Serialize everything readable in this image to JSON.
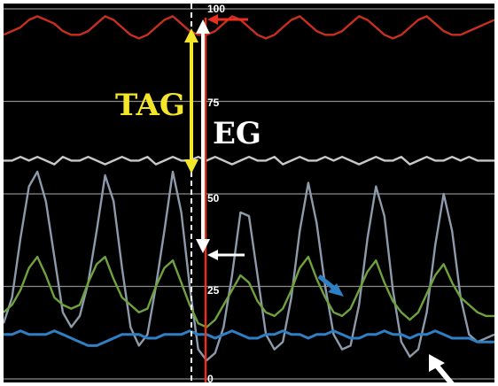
{
  "chart_data": {
    "type": "line",
    "ylim": [
      0,
      100
    ],
    "y_ticks": [
      "0",
      "25",
      "50",
      "75",
      "100"
    ],
    "grid": true,
    "colors": {
      "red": "#c8301e",
      "gray": "#c8c8c8",
      "slate": "#8c9aab",
      "green": "#6fa23e",
      "blue": "#2f7fc4",
      "yellow": "#f2e52a",
      "white": "#ffffff",
      "marker_red": "#e8301e"
    },
    "annotations": {
      "tag": "TAG",
      "eg": "EG"
    },
    "series": [
      {
        "color_key": "red",
        "values": [
          93,
          94,
          95,
          97,
          98,
          97,
          96,
          94,
          93,
          93,
          94,
          96,
          98,
          97,
          95,
          93,
          92,
          93,
          95,
          97,
          98,
          96,
          94,
          93,
          93,
          94,
          96,
          98,
          97,
          95,
          93,
          92,
          93,
          95,
          97,
          98,
          96,
          94,
          93,
          93,
          94,
          96,
          98,
          97,
          95,
          93,
          92,
          93,
          95,
          97,
          98,
          96,
          94,
          93,
          93,
          94,
          95,
          96,
          97
        ]
      },
      {
        "color_key": "gray",
        "values": [
          59,
          59,
          60,
          59,
          60,
          59,
          58,
          60,
          59,
          59,
          60,
          59,
          58,
          59,
          60,
          59,
          59,
          60,
          58,
          59,
          60,
          59,
          59,
          60,
          59,
          60,
          59,
          58,
          59,
          60,
          59,
          59,
          60,
          58,
          59,
          60,
          59,
          59,
          60,
          59,
          60,
          59,
          58,
          59,
          60,
          59,
          59,
          60,
          58,
          59,
          60,
          59,
          59,
          60,
          59,
          60,
          59,
          59,
          59
        ]
      },
      {
        "color_key": "slate",
        "values": [
          15,
          22,
          38,
          52,
          56,
          48,
          33,
          18,
          14,
          17,
          26,
          40,
          55,
          48,
          30,
          14,
          9,
          12,
          25,
          40,
          56,
          45,
          25,
          8,
          5,
          7,
          14,
          28,
          45,
          44,
          28,
          12,
          8,
          10,
          22,
          40,
          53,
          42,
          25,
          12,
          8,
          9,
          20,
          38,
          52,
          44,
          24,
          10,
          6,
          8,
          18,
          36,
          50,
          40,
          22,
          12,
          10,
          11,
          12
        ]
      },
      {
        "color_key": "green",
        "values": [
          18,
          20,
          24,
          30,
          33,
          28,
          22,
          20,
          19,
          20,
          26,
          31,
          33,
          27,
          22,
          20,
          18,
          19,
          25,
          30,
          32,
          26,
          20,
          15,
          14,
          16,
          20,
          24,
          28,
          26,
          21,
          18,
          17,
          19,
          24,
          30,
          33,
          27,
          22,
          18,
          17,
          19,
          24,
          29,
          32,
          26,
          21,
          18,
          16,
          18,
          23,
          28,
          31,
          26,
          22,
          20,
          18,
          17,
          17
        ]
      },
      {
        "color_key": "blue",
        "values": [
          12,
          12,
          13,
          12,
          12,
          12,
          13,
          12,
          11,
          10,
          9,
          9,
          10,
          11,
          12,
          12,
          12,
          11,
          11,
          12,
          12,
          12,
          13,
          12,
          12,
          11,
          12,
          13,
          12,
          11,
          11,
          12,
          12,
          13,
          12,
          12,
          11,
          12,
          12,
          13,
          12,
          11,
          11,
          12,
          12,
          13,
          12,
          12,
          11,
          12,
          12,
          13,
          12,
          11,
          11,
          11,
          10,
          10,
          10
        ]
      }
    ]
  }
}
